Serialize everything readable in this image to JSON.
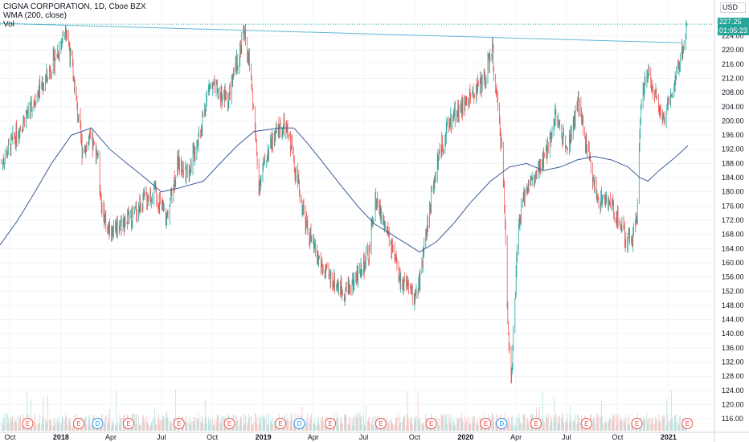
{
  "legend": {
    "symbol": "CIGNA CORPORATION, 1D, Cboe BZX",
    "indicator": "WMA (200, close)",
    "volume": "Vol"
  },
  "currency_button": "USD",
  "last_price": "227.25",
  "countdown": "01:05:23",
  "colors": {
    "up": "#26a69a",
    "down": "#ef5350",
    "wma": "#3d5a99",
    "trendline": "#5fb8d6",
    "grid": "#f0f3fa",
    "axis_text": "#131722",
    "volume_up": "#b7e2dd",
    "volume_down": "#f7c3c2",
    "earnings": "#ef5350",
    "dividends": "#2196f3"
  },
  "chart_data": {
    "type": "candlestick",
    "y_axis": {
      "range": [
        114,
        230
      ],
      "ticks": [
        116,
        120,
        124,
        128,
        132,
        136,
        140,
        144,
        148,
        152,
        156,
        160,
        164,
        168,
        172,
        176,
        180,
        184,
        188,
        192,
        196,
        200,
        204,
        208,
        212,
        216,
        220,
        224
      ]
    },
    "x_axis": {
      "ticks": [
        "Oct",
        "2018",
        "Apr",
        "Jul",
        "Oct",
        "2019",
        "Apr",
        "Jul",
        "Oct",
        "2020",
        "Apr",
        "Jul",
        "Oct",
        "2021"
      ],
      "range": [
        "2017-09-13",
        "2021-02-05"
      ]
    },
    "grid": true,
    "price_anchors": [
      [
        "2017-09-15",
        188
      ],
      [
        "2017-10-15",
        197
      ],
      [
        "2017-11-10",
        205
      ],
      [
        "2017-12-05",
        212
      ],
      [
        "2017-12-28",
        220
      ],
      [
        "2018-01-10",
        227
      ],
      [
        "2018-01-25",
        210
      ],
      [
        "2018-02-08",
        192
      ],
      [
        "2018-02-22",
        194
      ],
      [
        "2018-03-08",
        191
      ],
      [
        "2018-03-15",
        176
      ],
      [
        "2018-03-28",
        169
      ],
      [
        "2018-04-15",
        171
      ],
      [
        "2018-05-10",
        173
      ],
      [
        "2018-06-01",
        178
      ],
      [
        "2018-06-20",
        180
      ],
      [
        "2018-07-10",
        172
      ],
      [
        "2018-07-30",
        188
      ],
      [
        "2018-08-20",
        186
      ],
      [
        "2018-09-10",
        198
      ],
      [
        "2018-09-25",
        210
      ],
      [
        "2018-10-10",
        208
      ],
      [
        "2018-10-30",
        206
      ],
      [
        "2018-11-20",
        220
      ],
      [
        "2018-11-28",
        226
      ],
      [
        "2018-12-10",
        212
      ],
      [
        "2018-12-24",
        182
      ],
      [
        "2019-01-10",
        192
      ],
      [
        "2019-01-30",
        198
      ],
      [
        "2019-02-10",
        198
      ],
      [
        "2019-02-22",
        192
      ],
      [
        "2019-03-05",
        182
      ],
      [
        "2019-03-20",
        170
      ],
      [
        "2019-04-05",
        163
      ],
      [
        "2019-04-22",
        157
      ],
      [
        "2019-05-08",
        155
      ],
      [
        "2019-05-25",
        152
      ],
      [
        "2019-06-10",
        154
      ],
      [
        "2019-06-25",
        158
      ],
      [
        "2019-07-10",
        162
      ],
      [
        "2019-07-22",
        178
      ],
      [
        "2019-08-05",
        172
      ],
      [
        "2019-08-20",
        164
      ],
      [
        "2019-09-05",
        155
      ],
      [
        "2019-09-20",
        152
      ],
      [
        "2019-10-01",
        150
      ],
      [
        "2019-10-10",
        155
      ],
      [
        "2019-10-25",
        172
      ],
      [
        "2019-11-10",
        188
      ],
      [
        "2019-11-25",
        196
      ],
      [
        "2019-12-10",
        202
      ],
      [
        "2019-12-28",
        204
      ],
      [
        "2020-01-15",
        208
      ],
      [
        "2020-02-05",
        212
      ],
      [
        "2020-02-18",
        220
      ],
      [
        "2020-02-26",
        206
      ],
      [
        "2020-03-08",
        190
      ],
      [
        "2020-03-18",
        140
      ],
      [
        "2020-03-24",
        128
      ],
      [
        "2020-04-05",
        170
      ],
      [
        "2020-04-20",
        182
      ],
      [
        "2020-05-08",
        184
      ],
      [
        "2020-05-28",
        192
      ],
      [
        "2020-06-10",
        202
      ],
      [
        "2020-06-22",
        196
      ],
      [
        "2020-07-05",
        194
      ],
      [
        "2020-07-22",
        205
      ],
      [
        "2020-08-10",
        190
      ],
      [
        "2020-08-25",
        178
      ],
      [
        "2020-09-05",
        178
      ],
      [
        "2020-09-20",
        176
      ],
      [
        "2020-10-05",
        172
      ],
      [
        "2020-10-16",
        166
      ],
      [
        "2020-10-28",
        167
      ],
      [
        "2020-11-05",
        175
      ],
      [
        "2020-11-12",
        205
      ],
      [
        "2020-11-25",
        214
      ],
      [
        "2020-12-08",
        208
      ],
      [
        "2020-12-22",
        200
      ],
      [
        "2021-01-05",
        208
      ],
      [
        "2021-01-20",
        216
      ],
      [
        "2021-02-03",
        226
      ]
    ],
    "wma_anchors": [
      [
        "2017-09-13",
        165
      ],
      [
        "2017-10-15",
        172
      ],
      [
        "2017-11-15",
        180
      ],
      [
        "2017-12-15",
        188
      ],
      [
        "2018-01-20",
        196
      ],
      [
        "2018-02-25",
        198
      ],
      [
        "2018-03-30",
        192
      ],
      [
        "2018-04-30",
        188
      ],
      [
        "2018-06-01",
        184
      ],
      [
        "2018-07-01",
        180
      ],
      [
        "2018-07-31",
        181
      ],
      [
        "2018-09-15",
        183
      ],
      [
        "2018-10-15",
        188
      ],
      [
        "2018-11-15",
        193
      ],
      [
        "2018-12-15",
        197
      ],
      [
        "2019-01-30",
        198
      ],
      [
        "2019-02-25",
        198
      ],
      [
        "2019-03-20",
        194
      ],
      [
        "2019-04-20",
        188
      ],
      [
        "2019-05-20",
        182
      ],
      [
        "2019-06-20",
        176
      ],
      [
        "2019-07-20",
        171
      ],
      [
        "2019-08-20",
        168
      ],
      [
        "2019-09-20",
        165
      ],
      [
        "2019-10-10",
        163
      ],
      [
        "2019-11-10",
        166
      ],
      [
        "2019-12-10",
        171
      ],
      [
        "2020-01-10",
        177
      ],
      [
        "2020-02-15",
        183
      ],
      [
        "2020-03-20",
        187
      ],
      [
        "2020-04-20",
        188
      ],
      [
        "2020-05-20",
        186
      ],
      [
        "2020-06-20",
        187
      ],
      [
        "2020-07-20",
        189
      ],
      [
        "2020-08-20",
        190
      ],
      [
        "2020-09-20",
        189
      ],
      [
        "2020-10-20",
        187
      ],
      [
        "2020-11-10",
        184
      ],
      [
        "2020-11-25",
        183
      ],
      [
        "2020-12-15",
        186
      ],
      [
        "2021-01-15",
        190
      ],
      [
        "2021-02-05",
        193
      ]
    ],
    "trendline": [
      [
        "2017-09-13",
        227.5
      ],
      [
        "2021-01-25",
        222
      ]
    ],
    "events": [
      {
        "date": "2017-11-02",
        "type": "E"
      },
      {
        "date": "2018-02-02",
        "type": "E"
      },
      {
        "date": "2018-03-08",
        "type": "D"
      },
      {
        "date": "2018-05-03",
        "type": "E"
      },
      {
        "date": "2018-08-02",
        "type": "E"
      },
      {
        "date": "2018-11-01",
        "type": "E"
      },
      {
        "date": "2019-02-01",
        "type": "E"
      },
      {
        "date": "2019-03-07",
        "type": "D"
      },
      {
        "date": "2019-05-02",
        "type": "E"
      },
      {
        "date": "2019-08-01",
        "type": "E"
      },
      {
        "date": "2019-10-31",
        "type": "E"
      },
      {
        "date": "2020-02-06",
        "type": "E"
      },
      {
        "date": "2020-03-06",
        "type": "D"
      },
      {
        "date": "2020-05-07",
        "type": "E"
      },
      {
        "date": "2020-08-06",
        "type": "E"
      },
      {
        "date": "2020-11-05",
        "type": "E"
      },
      {
        "date": "2021-02-04",
        "type": "E"
      }
    ]
  }
}
